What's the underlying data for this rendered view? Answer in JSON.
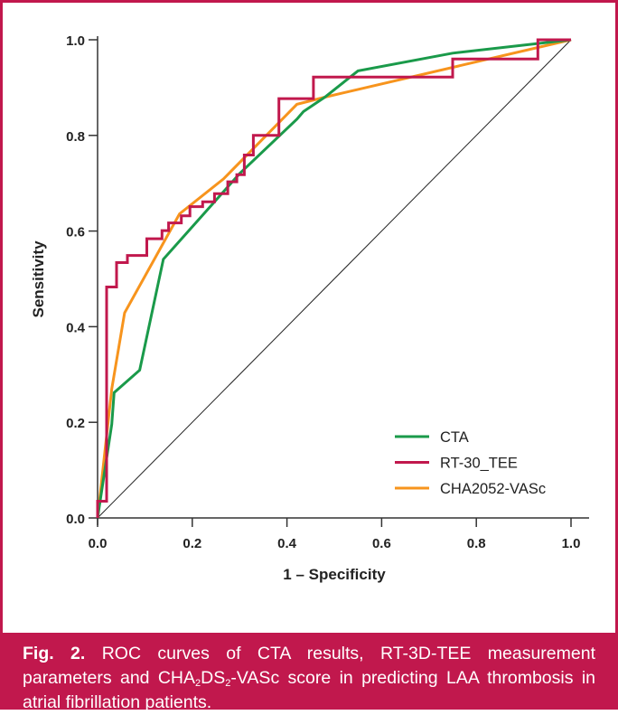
{
  "chart_data": {
    "type": "line",
    "xlabel": "1 – Specificity",
    "ylabel": "Sensitivity",
    "xlim": [
      0,
      1
    ],
    "ylim": [
      0,
      1
    ],
    "xticks": [
      "0.0",
      "0.2",
      "0.4",
      "0.6",
      "0.8",
      "1.0"
    ],
    "yticks": [
      "0.0",
      "0.2",
      "0.4",
      "0.6",
      "0.8",
      "1.0"
    ],
    "grid": false,
    "legend_position": "bottom-right",
    "reference_line": {
      "x": [
        0,
        1
      ],
      "y": [
        0,
        1
      ],
      "color": "#222222"
    },
    "series": [
      {
        "name": "CTA",
        "color": "#1a9a4a",
        "step": false,
        "x": [
          0,
          0.03,
          0.035,
          0.089,
          0.139,
          0.3,
          0.421,
          0.435,
          0.48,
          0.55,
          0.75,
          1.0
        ],
        "y": [
          0,
          0.196,
          0.262,
          0.309,
          0.541,
          0.72,
          0.834,
          0.85,
          0.88,
          0.935,
          0.972,
          1.0
        ]
      },
      {
        "name": "RT-30_TEE",
        "color": "#c1184d",
        "step": true,
        "x": [
          0,
          0,
          0.019,
          0.019,
          0.04,
          0.04,
          0.063,
          0.063,
          0.104,
          0.104,
          0.136,
          0.136,
          0.15,
          0.15,
          0.177,
          0.177,
          0.195,
          0.195,
          0.222,
          0.222,
          0.247,
          0.247,
          0.275,
          0.275,
          0.294,
          0.294,
          0.31,
          0.31,
          0.329,
          0.329,
          0.383,
          0.383,
          0.456,
          0.456,
          0.75,
          0.75,
          0.93,
          0.93,
          1.0
        ],
        "y": [
          0,
          0.035,
          0.035,
          0.483,
          0.483,
          0.534,
          0.534,
          0.549,
          0.549,
          0.584,
          0.584,
          0.601,
          0.601,
          0.617,
          0.617,
          0.632,
          0.632,
          0.651,
          0.651,
          0.661,
          0.661,
          0.678,
          0.678,
          0.703,
          0.703,
          0.718,
          0.718,
          0.759,
          0.759,
          0.8,
          0.8,
          0.877,
          0.877,
          0.922,
          0.922,
          0.96,
          0.96,
          1.0,
          1.0
        ]
      },
      {
        "name": "CHA2052-VASc",
        "color": "#f7941d",
        "step": false,
        "x": [
          0,
          0.03,
          0.057,
          0.173,
          0.266,
          0.421,
          0.48,
          1.0
        ],
        "y": [
          0,
          0.27,
          0.429,
          0.636,
          0.709,
          0.865,
          0.88,
          1.0
        ]
      }
    ]
  },
  "caption": {
    "label": "Fig. 2.",
    "text_1": " ROC curves of CTA results, RT-3D-TEE measurement parameters and CHA",
    "sub_1": "2",
    "text_2": "DS",
    "sub_2": "2",
    "text_3": "-VASc score in predicting LAA thrombosis in atrial fibrillation patients."
  }
}
